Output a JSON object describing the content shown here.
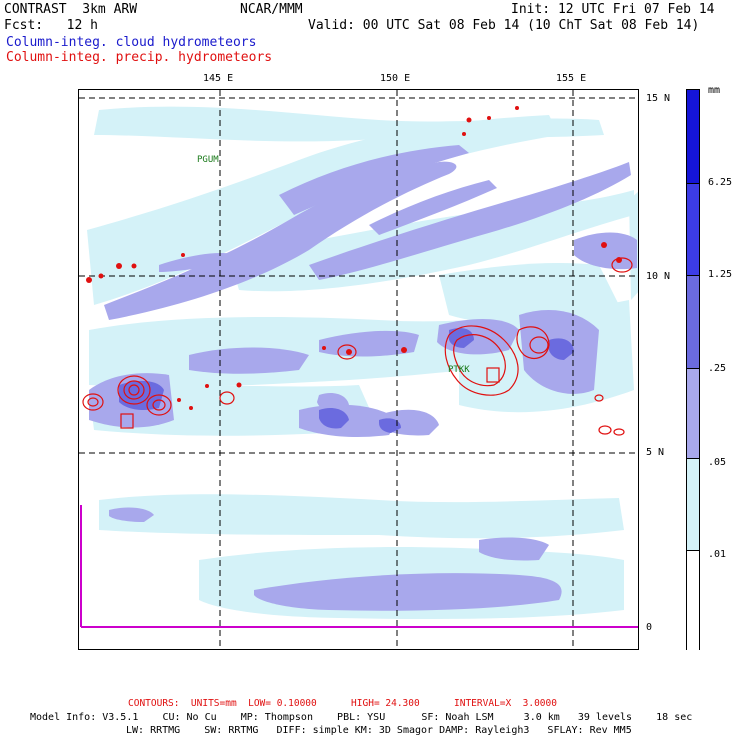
{
  "header": {
    "model": "CONTRAST  3km ARW",
    "org": "NCAR/MMM",
    "init": "Init: 12 UTC Fri 07 Feb 14",
    "fcst": "Fcst:   12 h",
    "valid": "Valid: 00 UTC Sat 08 Feb 14 (10 ChT Sat 08 Feb 14)"
  },
  "legend": {
    "line1": "Column-integ. cloud hydrometeors",
    "line2": "Column-integ. precip. hydrometeors",
    "color1": "#1a1acc",
    "color2": "#e01010"
  },
  "map": {
    "lon_labels": [
      "145 E",
      "150 E",
      "155 E"
    ],
    "lat_labels": [
      "15 N",
      "10 N",
      "5 N",
      "0"
    ],
    "stations": [
      "PGUM",
      "PTKK"
    ]
  },
  "colorbar": {
    "unit": "mm",
    "labels": [
      "6.25",
      "1.25",
      ".25",
      ".05",
      ".01"
    ],
    "colors": [
      "#1515d8",
      "#3c3ce6",
      "#6b6bdf",
      "#a8a8ec",
      "#d4f2f8",
      "#ffffff"
    ]
  },
  "footer": {
    "contours": "CONTOURS:  UNITS=mm  LOW= 0.10000      HIGH= 24.300      INTERVAL=X  3.0000",
    "info1": "Model Info: V3.5.1    CU: No Cu    MP: Thompson    PBL: YSU      SF: Noah LSM     3.0 km   39 levels    18 sec",
    "info2": "LW: RRTMG    SW: RRTMG   DIFF: simple KM: 3D Smagor DAMP: Rayleigh3   SFLAY: Rev MM5"
  }
}
